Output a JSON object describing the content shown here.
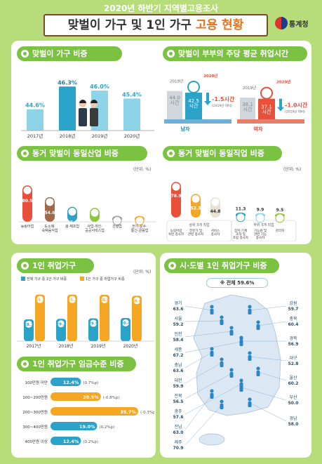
{
  "header": {
    "subtitle": "2020년 하반기 지역별고용조사",
    "title_main": "맞벌이 가구 및 1인 가구 ",
    "title_highlight": "고용 현황",
    "org": "통계청"
  },
  "sections": {
    "dual_ratio": "맞벌이 가구 비중",
    "dual_hours": "맞벌이 부부의 주당 평균 취업시간",
    "same_industry": "동거 맞벌이 동일산업 비중",
    "same_job": "동거 맞벌이 동일직업 비중",
    "single": "1인 취업가구",
    "single_wage": "1인 취업가구 임금수준 비중",
    "region": "시·도별 1인 취업가구 비중"
  },
  "units": {
    "percent": "(단위: %)"
  },
  "chart_data": [
    {
      "type": "bar",
      "id": "dual_ratio",
      "categories": [
        "2017년",
        "2018년",
        "2019년",
        "2020년"
      ],
      "values": [
        44.6,
        46.3,
        46.0,
        45.4
      ],
      "value_labels": [
        "44.6%",
        "46.3%",
        "46.0%",
        "45.4%"
      ],
      "ylim": [
        43,
        47
      ],
      "colors": [
        "#8ed4e8",
        "#2ba3c8",
        "#8ed4e8",
        "#8ed4e8"
      ]
    },
    {
      "type": "bar",
      "id": "dual_hours",
      "groups": [
        {
          "name": "남자",
          "prev_year": "2019년",
          "prev_value": 44.0,
          "prev_label": "44.0\n시간",
          "cur_year": "2020년",
          "cur_value": 42.5,
          "cur_label": "42.5\n시간",
          "change": "-1.5시간",
          "change_note": "(2019년 대비)"
        },
        {
          "name": "여자",
          "prev_year": "2019년",
          "prev_value": 38.1,
          "prev_label": "38.1\n시간",
          "cur_year": "2020년",
          "cur_value": 37.1,
          "cur_label": "37.1\n시간",
          "change": "-1.0시간",
          "change_note": "(2019년 대비)"
        }
      ]
    },
    {
      "type": "bar",
      "id": "same_industry",
      "categories": [
        "농림어업",
        "도소매·\n숙박음식업",
        "광·제조업",
        "사업·개인·\n공공서비스업",
        "건설업",
        "전기·운수·\n통신·금융업"
      ],
      "values": [
        80.5,
        54.6,
        33.1,
        30.8,
        13.2,
        12.9
      ],
      "ylim": [
        0,
        90
      ],
      "colors": [
        "#e8503a",
        "#a0694a",
        "#2ba3c8",
        "#8cc63f",
        "#9c9c9c",
        "#f5a623"
      ]
    },
    {
      "type": "bar",
      "id": "same_job",
      "groups": [
        {
          "name": "상위 3개 직업",
          "categories": [
            "농림어업\n숙련 종사자",
            "전문가 및\n관련 종사자",
            "서비스\n종사자"
          ],
          "values": [
            78.9,
            52.3,
            44.8
          ],
          "colors": [
            "#e8503a",
            "#f5a623",
            "#e8e0d0"
          ]
        },
        {
          "name": "하위 3개 직업",
          "categories": [
            "장치·기계\n조작 및\n조립 종사자",
            "기능원 및\n관련 기능\n종사자",
            "관리자"
          ],
          "values": [
            11.3,
            9.9,
            9.5
          ],
          "colors": [
            "#2ba3c8",
            "#8ed4e8",
            "#8cc63f"
          ]
        }
      ],
      "ylim": [
        0,
        90
      ]
    },
    {
      "type": "bar",
      "id": "single",
      "categories": [
        "2017년",
        "2018년",
        "2019년",
        "2020년"
      ],
      "series": [
        {
          "name": "전체 가구 중 1인 가구 비중",
          "values": [
            28.7,
            29.2,
            29.9,
            30.4
          ],
          "color": "#2ba3c8"
        },
        {
          "name": "1인 가구 중 취업가구 비중",
          "values": [
            61.1,
            61.1,
            60.8,
            59.6
          ],
          "color": "#f5a623"
        }
      ],
      "ylim": [
        0,
        70
      ]
    },
    {
      "type": "bar",
      "id": "single_wage",
      "orientation": "horizontal",
      "categories": [
        "100만원 미만",
        "100~200만원",
        "200~300만원",
        "300~400만원",
        "400만원 이상"
      ],
      "values": [
        12.4,
        20.5,
        35.7,
        19.0,
        12.4
      ],
      "value_labels": [
        "12.4%",
        "20.5%",
        "35.7%",
        "19.0%",
        "12.4%"
      ],
      "changes": [
        "(0.7%p)",
        "(-0.8%p)",
        "(-0.3%p)",
        "(0.2%p)",
        "(0.2%p)"
      ],
      "xlim": [
        0,
        40
      ],
      "colors": [
        "#2ba3c8",
        "#f5a623",
        "#f5a623",
        "#2ba3c8",
        "#2ba3c8"
      ]
    },
    {
      "type": "table",
      "id": "region",
      "total": "※ 전체 59.6%",
      "regions": [
        {
          "name": "경기",
          "value": 63.6
        },
        {
          "name": "서울",
          "value": 59.2
        },
        {
          "name": "인천",
          "value": 58.4
        },
        {
          "name": "세종",
          "value": 67.2
        },
        {
          "name": "충남",
          "value": 63.6
        },
        {
          "name": "대전",
          "value": 59.9
        },
        {
          "name": "전북",
          "value": 56.5
        },
        {
          "name": "광주",
          "value": 57.6
        },
        {
          "name": "전남",
          "value": 63.0
        },
        {
          "name": "제주",
          "value": 70.9
        },
        {
          "name": "강원",
          "value": 59.7
        },
        {
          "name": "충북",
          "value": 60.4
        },
        {
          "name": "경북",
          "value": 56.9
        },
        {
          "name": "대구",
          "value": 52.8
        },
        {
          "name": "울산",
          "value": 60.2
        },
        {
          "name": "부산",
          "value": 50.0
        },
        {
          "name": "경남",
          "value": 58.0
        }
      ]
    }
  ]
}
